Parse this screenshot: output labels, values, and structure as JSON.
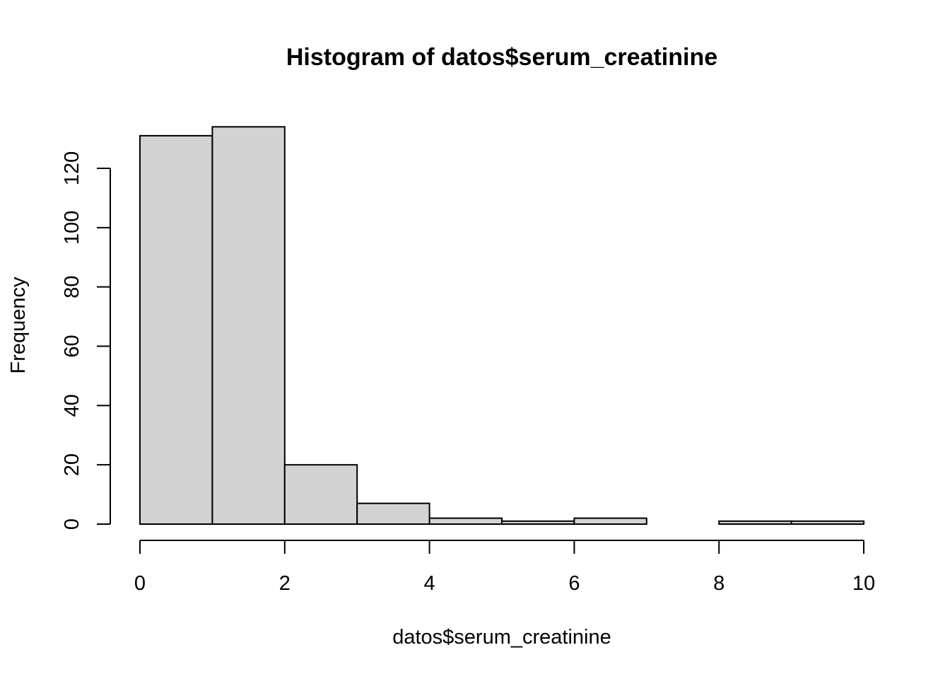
{
  "chart_data": {
    "type": "bar",
    "title": "Histogram of datos$serum_creatinine",
    "xlabel": "datos$serum_creatinine",
    "ylabel": "Frequency",
    "bin_edges": [
      0,
      1,
      2,
      3,
      4,
      5,
      6,
      7,
      8,
      9,
      10
    ],
    "values": [
      131,
      134,
      20,
      7,
      2,
      1,
      2,
      0,
      1,
      1
    ],
    "xlim": [
      0,
      10
    ],
    "ylim": [
      0,
      134
    ],
    "x_ticks": [
      0,
      2,
      4,
      6,
      8,
      10
    ],
    "y_ticks": [
      0,
      20,
      40,
      60,
      80,
      100,
      120
    ],
    "bar_color": "#d3d3d3",
    "grid": false
  }
}
